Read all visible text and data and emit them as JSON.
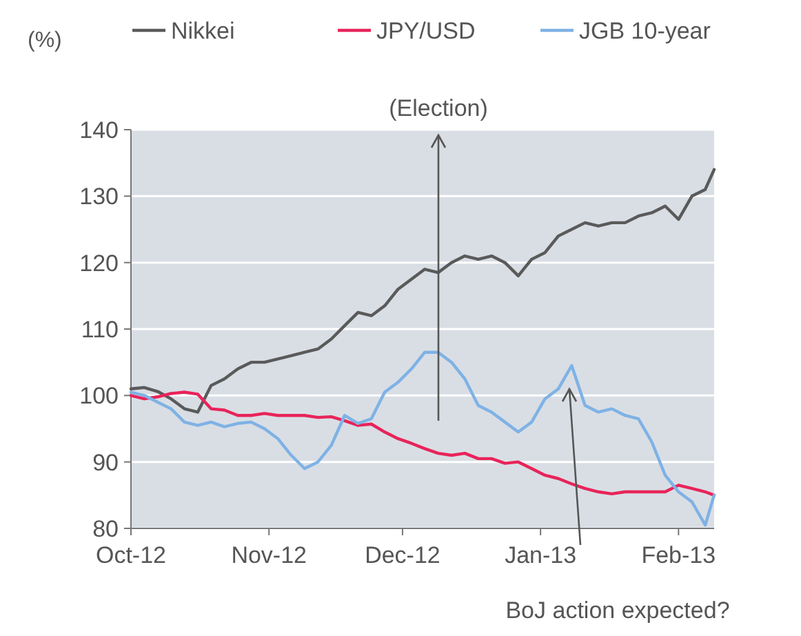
{
  "chart_data": {
    "type": "line",
    "ylabel": "(%)",
    "x": [
      "2012-10-01",
      "2012-10-04",
      "2012-10-07",
      "2012-10-10",
      "2012-10-13",
      "2012-10-16",
      "2012-10-19",
      "2012-10-22",
      "2012-10-25",
      "2012-10-28",
      "2012-10-31",
      "2012-11-03",
      "2012-11-06",
      "2012-11-09",
      "2012-11-12",
      "2012-11-15",
      "2012-11-18",
      "2012-11-21",
      "2012-11-24",
      "2012-11-27",
      "2012-11-30",
      "2012-12-03",
      "2012-12-06",
      "2012-12-09",
      "2012-12-12",
      "2012-12-15",
      "2012-12-18",
      "2012-12-21",
      "2012-12-24",
      "2012-12-27",
      "2012-12-30",
      "2013-01-02",
      "2013-01-05",
      "2013-01-08",
      "2013-01-11",
      "2013-01-14",
      "2013-01-17",
      "2013-01-20",
      "2013-01-23",
      "2013-01-26",
      "2013-01-29",
      "2013-02-01",
      "2013-02-04",
      "2013-02-07",
      "2013-02-09"
    ],
    "series": [
      {
        "name": "Nikkei",
        "color": "#5a5a5a",
        "values": [
          101,
          101.2,
          100.6,
          99.5,
          98,
          97.5,
          101.5,
          102.5,
          104,
          105,
          105,
          105.5,
          106,
          106.5,
          107,
          108.5,
          110.5,
          112.5,
          112,
          113.5,
          116,
          117.5,
          119,
          118.5,
          120,
          121,
          120.5,
          121,
          120,
          118,
          120.5,
          121.5,
          124,
          125,
          126,
          125.5,
          126,
          126,
          127,
          127.5,
          128.5,
          126.5,
          130,
          131,
          134
        ]
      },
      {
        "name": "JPY/USD",
        "color": "#e8245a",
        "values": [
          100,
          99.5,
          99.8,
          100.3,
          100.5,
          100.2,
          98,
          97.8,
          97,
          97,
          97.3,
          97,
          97,
          97,
          96.7,
          96.8,
          96.2,
          95.5,
          95.7,
          94.5,
          93.5,
          92.8,
          92,
          91.3,
          91,
          91.3,
          90.5,
          90.5,
          89.8,
          90,
          89,
          88,
          87.5,
          86.7,
          86,
          85.5,
          85.2,
          85.5,
          85.5,
          85.5,
          85.5,
          86.5,
          86,
          85.5,
          85
        ]
      },
      {
        "name": "JGB 10-year",
        "color": "#7fb2e5",
        "values": [
          100.5,
          100,
          99,
          98,
          96,
          95.5,
          96,
          95.3,
          95.8,
          96,
          95,
          93.5,
          91,
          89,
          90,
          92.5,
          97,
          95.8,
          96.5,
          100.5,
          102,
          104,
          106.5,
          106.5,
          105,
          102.5,
          98.5,
          97.5,
          96,
          94.5,
          96,
          99.5,
          101,
          104.5,
          98.5,
          97.5,
          98,
          97,
          96.5,
          93,
          88,
          85.5,
          84,
          80.5,
          85
        ]
      }
    ],
    "xlim": [
      "2012-10-01",
      "2013-02-09"
    ],
    "xticks": [
      {
        "value": "2012-10-01",
        "label": "Oct-12"
      },
      {
        "value": "2012-11-01",
        "label": "Nov-12"
      },
      {
        "value": "2012-12-01",
        "label": "Dec-12"
      },
      {
        "value": "2013-01-01",
        "label": "Jan-13"
      },
      {
        "value": "2013-02-01",
        "label": "Feb-13"
      }
    ],
    "ylim": [
      80,
      140
    ],
    "yticks": [
      80,
      90,
      100,
      110,
      120,
      130,
      140
    ],
    "grid": "y",
    "legend": "top",
    "marker": "none",
    "line_style": "solid",
    "annotations": [
      "(Election)",
      "BoJ action expected?"
    ]
  }
}
